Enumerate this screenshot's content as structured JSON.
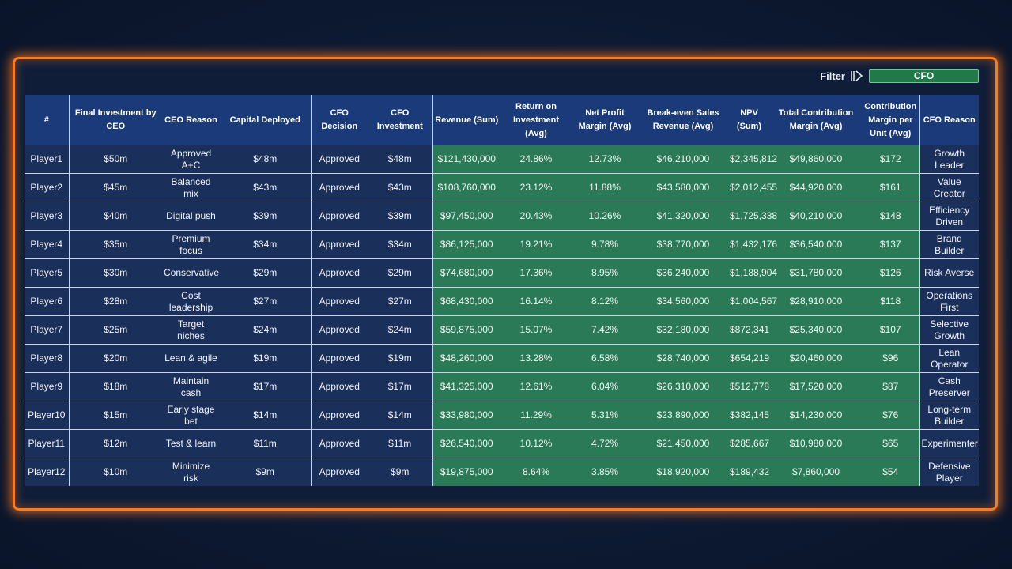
{
  "filter": {
    "label": "Filter",
    "value": "CFO"
  },
  "colors": {
    "accent_orange": "#ff7a1a",
    "header_blue": "#1a3a7a",
    "row_navy": "#1a2f5a",
    "row_green": "#2a7a58"
  },
  "columns": [
    "#",
    "Final Investment by CEO",
    "CEO Reason",
    "Capital Deployed",
    "CFO Decision",
    "CFO Investment",
    "Revenue (Sum)",
    "Return on Investment (Avg)",
    "Net Profit Margin (Avg)",
    "Break-even Sales Revenue (Avg)",
    "NPV (Sum)",
    "Total Contribution Margin (Avg)",
    "Contribution Margin per Unit (Avg)",
    "CFO Reason"
  ],
  "rows": [
    [
      "Player1",
      "$50m",
      "Approved A+C",
      "$48m",
      "Approved",
      "$48m",
      "$121,430,000",
      "24.86%",
      "12.73%",
      "$46,210,000",
      "$2,345,812",
      "$49,860,000",
      "$172",
      "Growth Leader"
    ],
    [
      "Player2",
      "$45m",
      "Balanced mix",
      "$43m",
      "Approved",
      "$43m",
      "$108,760,000",
      "23.12%",
      "11.88%",
      "$43,580,000",
      "$2,012,455",
      "$44,920,000",
      "$161",
      "Value Creator"
    ],
    [
      "Player3",
      "$40m",
      "Digital push",
      "$39m",
      "Approved",
      "$39m",
      "$97,450,000",
      "20.43%",
      "10.26%",
      "$41,320,000",
      "$1,725,338",
      "$40,210,000",
      "$148",
      "Efficiency Driven"
    ],
    [
      "Player4",
      "$35m",
      "Premium focus",
      "$34m",
      "Approved",
      "$34m",
      "$86,125,000",
      "19.21%",
      "9.78%",
      "$38,770,000",
      "$1,432,176",
      "$36,540,000",
      "$137",
      "Brand Builder"
    ],
    [
      "Player5",
      "$30m",
      "Conservative",
      "$29m",
      "Approved",
      "$29m",
      "$74,680,000",
      "17.36%",
      "8.95%",
      "$36,240,000",
      "$1,188,904",
      "$31,780,000",
      "$126",
      "Risk Averse"
    ],
    [
      "Player6",
      "$28m",
      "Cost leadership",
      "$27m",
      "Approved",
      "$27m",
      "$68,430,000",
      "16.14%",
      "8.12%",
      "$34,560,000",
      "$1,004,567",
      "$28,910,000",
      "$118",
      "Operations First"
    ],
    [
      "Player7",
      "$25m",
      "Target niches",
      "$24m",
      "Approved",
      "$24m",
      "$59,875,000",
      "15.07%",
      "7.42%",
      "$32,180,000",
      "$872,341",
      "$25,340,000",
      "$107",
      "Selective Growth"
    ],
    [
      "Player8",
      "$20m",
      "Lean & agile",
      "$19m",
      "Approved",
      "$19m",
      "$48,260,000",
      "13.28%",
      "6.58%",
      "$28,740,000",
      "$654,219",
      "$20,460,000",
      "$96",
      "Lean Operator"
    ],
    [
      "Player9",
      "$18m",
      "Maintain cash",
      "$17m",
      "Approved",
      "$17m",
      "$41,325,000",
      "12.61%",
      "6.04%",
      "$26,310,000",
      "$512,778",
      "$17,520,000",
      "$87",
      "Cash Preserver"
    ],
    [
      "Player10",
      "$15m",
      "Early stage bet",
      "$14m",
      "Approved",
      "$14m",
      "$33,980,000",
      "11.29%",
      "5.31%",
      "$23,890,000",
      "$382,145",
      "$14,230,000",
      "$76",
      "Long-term Builder"
    ],
    [
      "Player11",
      "$12m",
      "Test & learn",
      "$11m",
      "Approved",
      "$11m",
      "$26,540,000",
      "10.12%",
      "4.72%",
      "$21,450,000",
      "$285,667",
      "$10,980,000",
      "$65",
      "Experimenter"
    ],
    [
      "Player12",
      "$10m",
      "Minimize risk",
      "$9m",
      "Approved",
      "$9m",
      "$19,875,000",
      "8.64%",
      "3.85%",
      "$18,920,000",
      "$189,432",
      "$7,860,000",
      "$54",
      "Defensive Player"
    ]
  ]
}
